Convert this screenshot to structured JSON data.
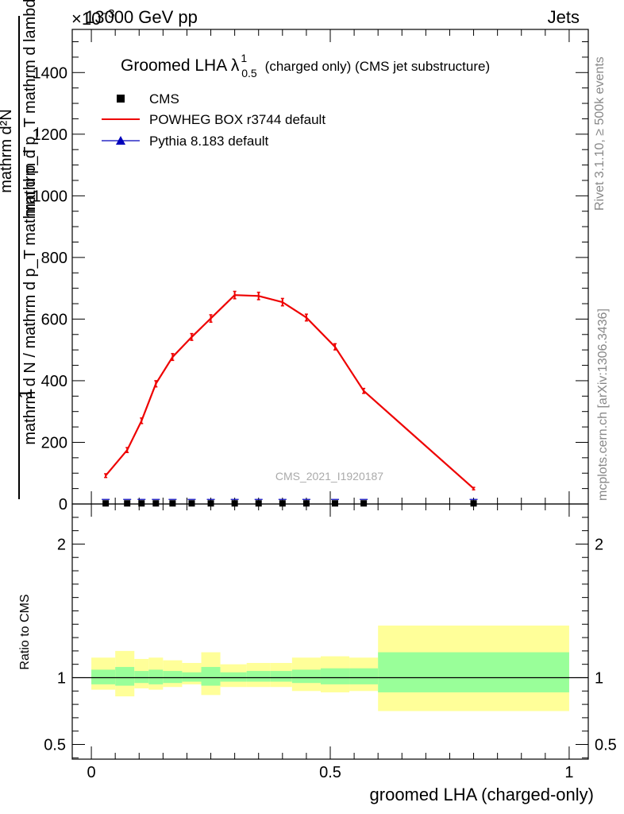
{
  "header": {
    "left": "13000 GeV pp",
    "right": "Jets",
    "exponent_prefix": "×10",
    "exponent": "−3"
  },
  "side": {
    "rivet": "Rivet 3.1.10, ≥ 500k events",
    "mcplots": "mcplots.cern.ch [arXiv:1306.3436]"
  },
  "watermark": "CMS_2021_I1920187",
  "ylabel_upper": {
    "one": "1",
    "den": "mathrm d N / mathrm d p_T mathrm d p_T",
    "num": "mathrm d²N",
    "num_tail": "mathrm d p_T mathrm d lambda"
  },
  "ylabel_lower": "Ratio to CMS",
  "xlabel": "groomed LHA (charged-only)",
  "chart_data": [
    {
      "type": "line",
      "title": "Groomed LHA λ",
      "title_sup": "1",
      "title_sub": "0.5",
      "title_tail": "(charged only) (CMS jet substructure)",
      "xlim": [
        -0.04,
        1.04
      ],
      "ylim": [
        0,
        1540
      ],
      "yticks": [
        0,
        200,
        400,
        600,
        800,
        1000,
        1200,
        1400
      ],
      "legend": [
        {
          "name": "CMS",
          "color": "#000000",
          "marker": "square"
        },
        {
          "name": "POWHEG BOX r3744 default",
          "color": "#ee0000",
          "marker": "line"
        },
        {
          "name": "Pythia 8.183 default",
          "color": "#0000bb",
          "marker": "triangle"
        }
      ],
      "series": [
        {
          "name": "CMS",
          "x": [
            0.03,
            0.075,
            0.105,
            0.135,
            0.17,
            0.21,
            0.25,
            0.3,
            0.35,
            0.4,
            0.45,
            0.51,
            0.57,
            0.8
          ],
          "y": [
            2,
            2,
            2,
            2,
            2,
            2,
            2,
            2,
            2,
            2,
            2,
            2,
            2,
            2
          ]
        },
        {
          "name": "POWHEG BOX r3744 default",
          "x": [
            0.03,
            0.075,
            0.105,
            0.135,
            0.17,
            0.21,
            0.25,
            0.3,
            0.35,
            0.4,
            0.45,
            0.51,
            0.57,
            0.8
          ],
          "y": [
            92,
            175,
            270,
            390,
            477,
            542,
            602,
            678,
            675,
            655,
            605,
            510,
            367,
            50
          ],
          "err": [
            6,
            8,
            9,
            10,
            11,
            11,
            12,
            12,
            12,
            12,
            11,
            10,
            8,
            4
          ]
        }
      ]
    },
    {
      "type": "area",
      "title": "Ratio to CMS",
      "xlim": [
        -0.04,
        1.04
      ],
      "ylim": [
        0.39,
        2.3
      ],
      "yticks": [
        0.5,
        1,
        2
      ],
      "xticks": [
        0,
        0.5,
        1
      ],
      "bin_edges": [
        0,
        0.05,
        0.09,
        0.12,
        0.15,
        0.19,
        0.23,
        0.27,
        0.325,
        0.375,
        0.42,
        0.48,
        0.54,
        0.6,
        1.0
      ],
      "band_inner_low": [
        0.95,
        0.94,
        0.96,
        0.95,
        0.96,
        0.97,
        0.94,
        0.97,
        0.97,
        0.97,
        0.96,
        0.95,
        0.95,
        0.89
      ],
      "band_inner_high": [
        1.06,
        1.08,
        1.05,
        1.06,
        1.05,
        1.04,
        1.08,
        1.04,
        1.05,
        1.05,
        1.06,
        1.07,
        1.07,
        1.19
      ],
      "band_outer_low": [
        0.91,
        0.86,
        0.92,
        0.91,
        0.93,
        0.95,
        0.87,
        0.93,
        0.93,
        0.93,
        0.9,
        0.89,
        0.9,
        0.75
      ],
      "band_outer_high": [
        1.15,
        1.2,
        1.14,
        1.15,
        1.13,
        1.11,
        1.19,
        1.1,
        1.11,
        1.11,
        1.15,
        1.16,
        1.15,
        1.39
      ],
      "reference": 1
    }
  ],
  "colors": {
    "inner_band": "#99ff99",
    "outer_band": "#ffff99",
    "powheg": "#ee0000",
    "pythia": "#0000bb",
    "cms": "#000000",
    "side_text": "#888888",
    "watermark": "#aaaaaa"
  }
}
